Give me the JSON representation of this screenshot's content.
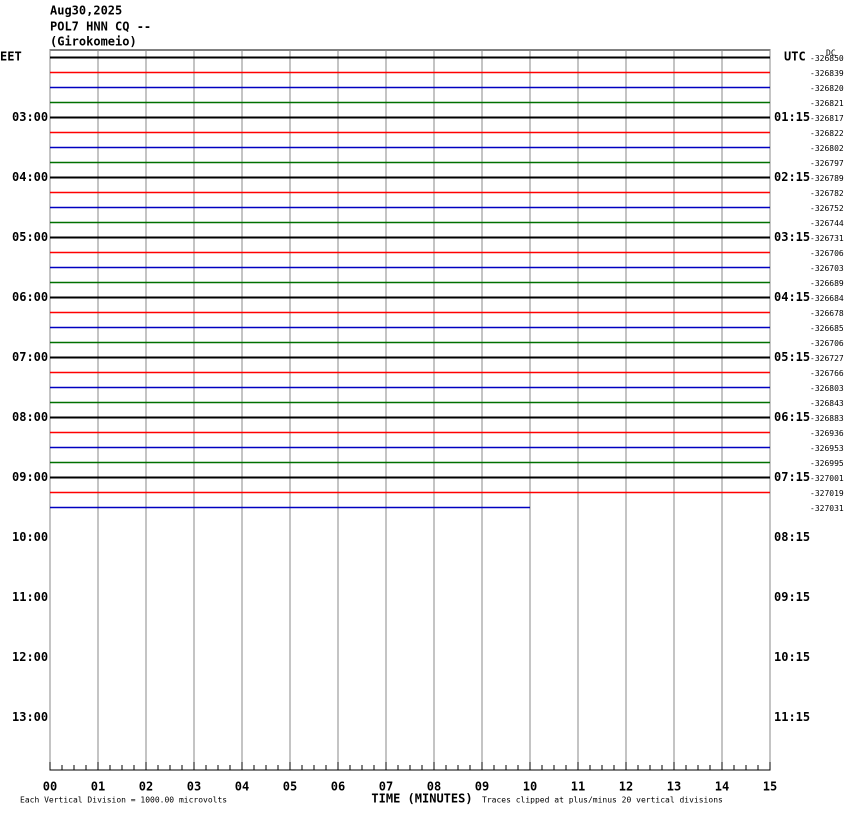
{
  "chart_data": {
    "type": "helicorder",
    "title": [
      "Aug30,2025",
      "POL7 HNN CQ --",
      "(Girokomeio)"
    ],
    "left_zone": "EET",
    "right_zone": "UTC",
    "offset_label": "DC",
    "left_labels": [
      "03:00",
      "04:00",
      "05:00",
      "06:00",
      "07:00",
      "08:00",
      "09:00",
      "10:00",
      "11:00",
      "12:00",
      "13:00"
    ],
    "right_labels": [
      "01:15",
      "02:15",
      "03:15",
      "04:15",
      "05:15",
      "06:15",
      "07:15",
      "08:15",
      "09:15",
      "10:15",
      "11:15"
    ],
    "trace_colors": [
      "#000000",
      "#ff0000",
      "#0000c0",
      "#007000"
    ],
    "dc_offsets": [
      -326850,
      -326839,
      -326820,
      -326821,
      -326817,
      -326822,
      -326802,
      -326797,
      -326789,
      -326782,
      -326752,
      -326744,
      -326731,
      -326706,
      -326703,
      -326689,
      -326684,
      -326678,
      -326685,
      -326706,
      -326727,
      -326766,
      -326803,
      -326843,
      -326883,
      -326936,
      -326953,
      -326995,
      -327001,
      -327019,
      -327031
    ],
    "last_trace_end": 10,
    "xlim": [
      0,
      15
    ],
    "xticks": [
      {
        "value": 0,
        "label": "00"
      },
      {
        "value": 1,
        "label": "01"
      },
      {
        "value": 2,
        "label": "02"
      },
      {
        "value": 3,
        "label": "03"
      },
      {
        "value": 4,
        "label": "04"
      },
      {
        "value": 5,
        "label": "05"
      },
      {
        "value": 6,
        "label": "06"
      },
      {
        "value": 7,
        "label": "07"
      },
      {
        "value": 8,
        "label": "08"
      },
      {
        "value": 9,
        "label": "09"
      },
      {
        "value": 10,
        "label": "10"
      },
      {
        "value": 11,
        "label": "11"
      },
      {
        "value": 12,
        "label": "12"
      },
      {
        "value": 13,
        "label": "13"
      },
      {
        "value": 14,
        "label": "14"
      },
      {
        "value": 15,
        "label": "15"
      }
    ],
    "xlabel": "TIME (MINUTES)",
    "scale_note": "Each Vertical Division = 1000.00 microvolts",
    "clip_note": "Traces clipped at plus/minus 20 vertical divisions"
  }
}
